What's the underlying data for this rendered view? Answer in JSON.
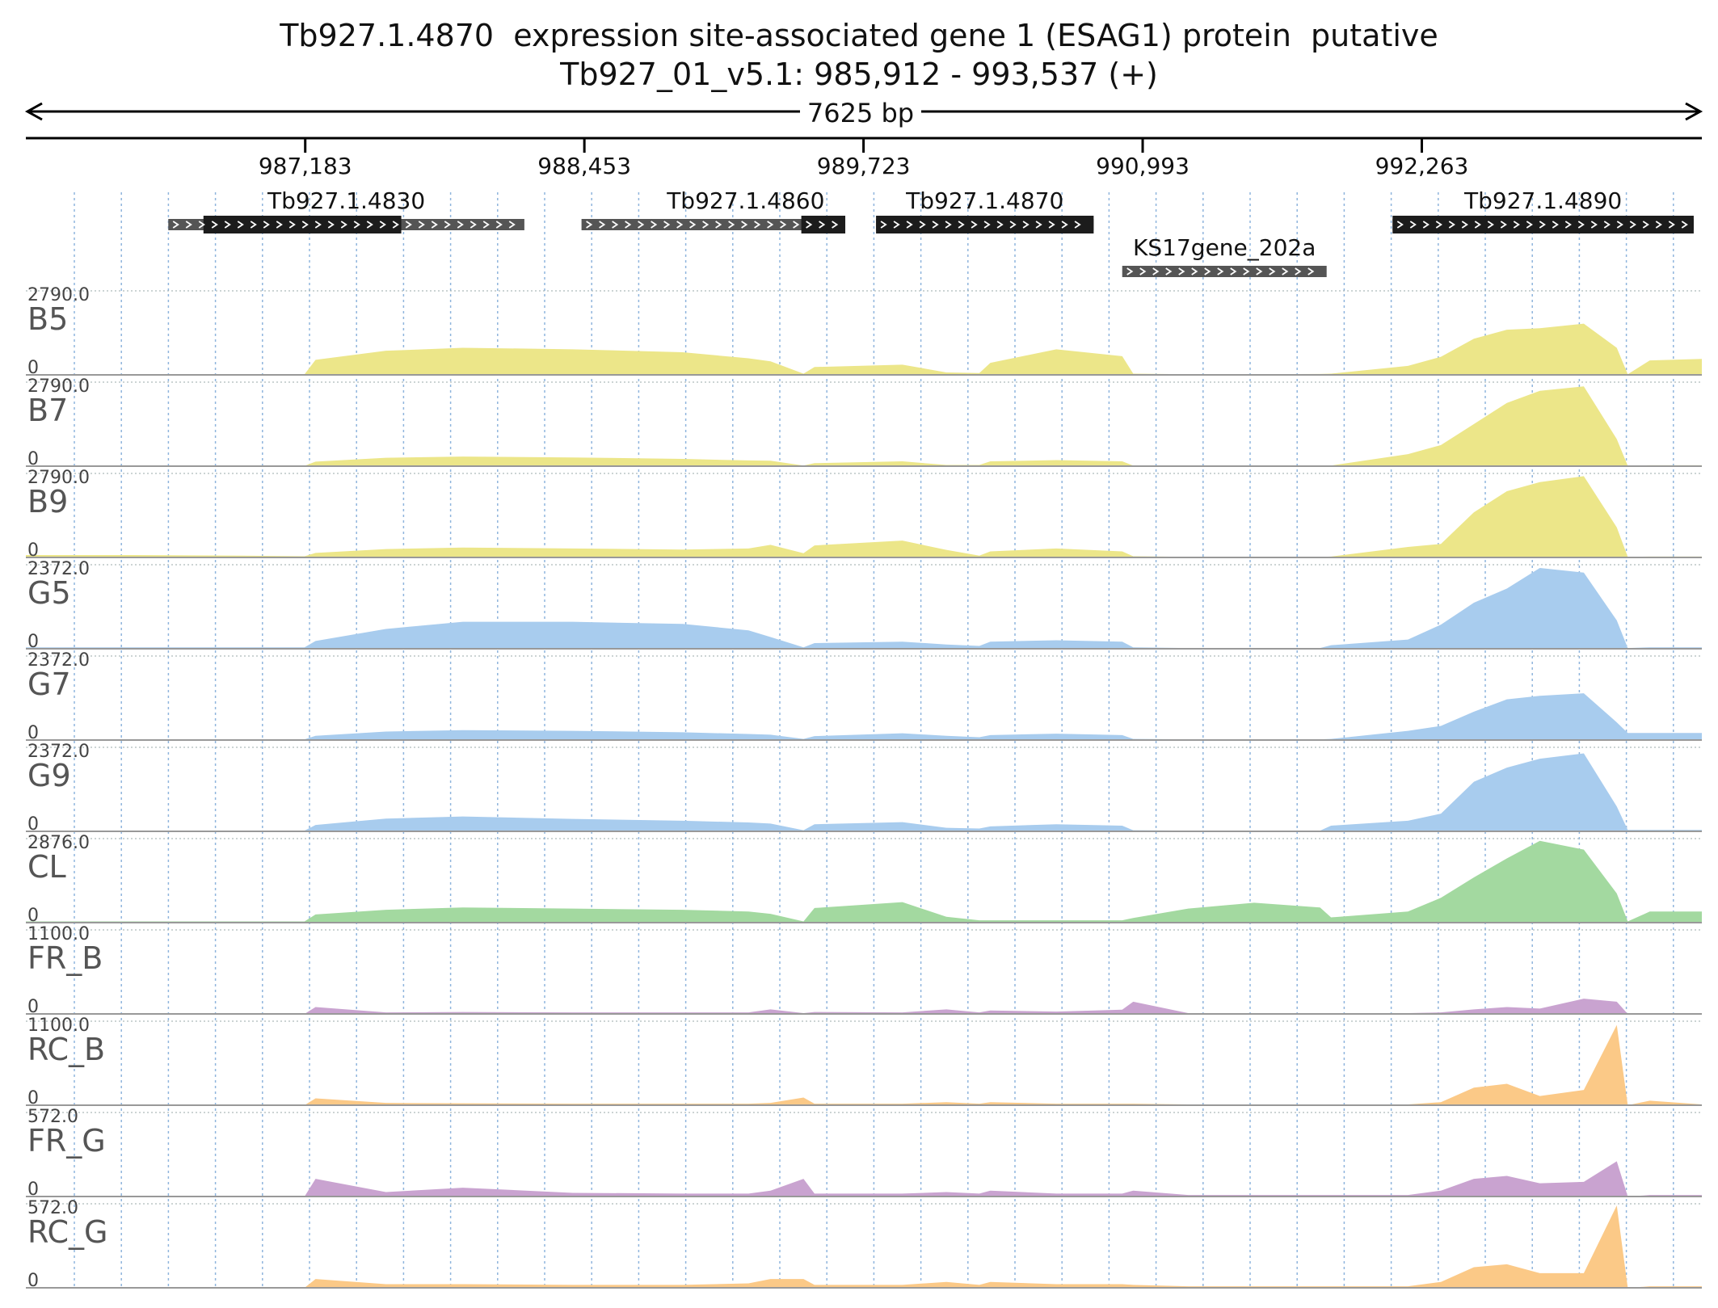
{
  "title": "Tb927.1.4870  expression site-associated gene 1 (ESAG1) protein  putative",
  "subtitle": "Tb927_01_v5.1: 985,912 - 993,537 (+)",
  "span_label": "7625 bp",
  "chart_data": {
    "type": "area",
    "region": {
      "chrom": "Tb927_01_v5.1",
      "start": 985912,
      "end": 993537,
      "strand": "+"
    },
    "ticks": [
      "987,183",
      "988,453",
      "989,723",
      "990,993",
      "992,263"
    ],
    "tick_positions": [
      987183,
      988453,
      989723,
      990993,
      992263
    ],
    "genes": [
      {
        "name": "Tb927.1.4830",
        "utr_start": 986560,
        "utr_end": 988180,
        "cds_start": 986720,
        "cds_end": 987620,
        "row": 0
      },
      {
        "name": "Tb927.1.4860",
        "utr_start": 988440,
        "utr_end": 989640,
        "cds_start": 989440,
        "cds_end": 989640,
        "row": 0
      },
      {
        "name": "Tb927.1.4870",
        "utr_start": 989780,
        "utr_end": 990770,
        "cds_start": 989780,
        "cds_end": 990770,
        "row": 0
      },
      {
        "name": "KS17gene_202a",
        "utr_start": 990900,
        "utr_end": 991830,
        "cds_start": 0,
        "cds_end": 0,
        "row": 1
      },
      {
        "name": "Tb927.1.4890",
        "utr_start": 992130,
        "utr_end": 993500,
        "cds_start": 992130,
        "cds_end": 993500,
        "row": 0
      }
    ],
    "x": [
      985912,
      986400,
      986900,
      987180,
      987230,
      987550,
      987900,
      988400,
      988900,
      989200,
      989300,
      989450,
      989500,
      989900,
      990100,
      990250,
      990300,
      990600,
      990900,
      990950,
      991200,
      991500,
      991800,
      991850,
      992200,
      992350,
      992500,
      992650,
      992800,
      993000,
      993150,
      993200,
      993300,
      993537
    ],
    "series": [
      {
        "name": "B5",
        "max": "2790.0",
        "color": "#ece689",
        "values": [
          20,
          20,
          20,
          20,
          500,
          800,
          900,
          850,
          750,
          550,
          450,
          40,
          260,
          340,
          80,
          60,
          400,
          850,
          620,
          40,
          20,
          20,
          30,
          40,
          300,
          600,
          1200,
          1500,
          1550,
          1700,
          900,
          20,
          480,
          530
        ]
      },
      {
        "name": "B7",
        "max": "2790.0",
        "color": "#ece689",
        "values": [
          10,
          10,
          10,
          10,
          150,
          280,
          320,
          290,
          240,
          190,
          180,
          20,
          100,
          160,
          40,
          40,
          160,
          200,
          160,
          20,
          10,
          10,
          10,
          20,
          400,
          700,
          1400,
          2100,
          2500,
          2650,
          900,
          10,
          30,
          30
        ]
      },
      {
        "name": "B9",
        "max": "2790.0",
        "color": "#ece689",
        "values": [
          80,
          80,
          60,
          40,
          150,
          280,
          330,
          300,
          260,
          300,
          420,
          140,
          400,
          560,
          250,
          60,
          200,
          300,
          200,
          40,
          20,
          20,
          20,
          30,
          350,
          450,
          1500,
          2200,
          2500,
          2700,
          1000,
          20,
          30,
          30
        ]
      },
      {
        "name": "G5",
        "max": "2372.0",
        "color": "#a8ccee",
        "values": [
          40,
          40,
          40,
          40,
          220,
          560,
          760,
          760,
          700,
          520,
          330,
          40,
          160,
          200,
          120,
          80,
          200,
          240,
          200,
          40,
          20,
          20,
          20,
          100,
          260,
          680,
          1300,
          1700,
          2280,
          2150,
          800,
          20,
          40,
          40
        ]
      },
      {
        "name": "G7",
        "max": "2372.0",
        "color": "#a8ccee",
        "values": [
          20,
          20,
          20,
          20,
          120,
          240,
          280,
          260,
          220,
          170,
          150,
          30,
          110,
          190,
          120,
          80,
          140,
          180,
          140,
          30,
          20,
          20,
          20,
          30,
          260,
          400,
          800,
          1150,
          1250,
          1320,
          500,
          200,
          200,
          200
        ]
      },
      {
        "name": "G9",
        "max": "2372.0",
        "color": "#a8ccee",
        "values": [
          20,
          20,
          20,
          20,
          180,
          360,
          420,
          350,
          300,
          250,
          220,
          30,
          200,
          260,
          100,
          80,
          140,
          200,
          160,
          30,
          20,
          20,
          20,
          160,
          300,
          500,
          1400,
          1800,
          2050,
          2200,
          700,
          40,
          40,
          40
        ]
      },
      {
        "name": "CL",
        "max": "2876.0",
        "color": "#a3d9a0",
        "values": [
          40,
          40,
          40,
          40,
          280,
          440,
          520,
          480,
          440,
          380,
          300,
          40,
          500,
          700,
          200,
          80,
          80,
          80,
          80,
          160,
          480,
          680,
          520,
          180,
          380,
          850,
          1550,
          2200,
          2800,
          2500,
          1000,
          40,
          380,
          380
        ]
      },
      {
        "name": "FR_B",
        "max": "1100.0",
        "color": "#c9a3d0",
        "values": [
          0,
          0,
          0,
          0,
          90,
          20,
          25,
          20,
          20,
          20,
          60,
          10,
          25,
          20,
          60,
          20,
          45,
          30,
          55,
          160,
          10,
          10,
          10,
          10,
          10,
          20,
          60,
          90,
          70,
          200,
          160,
          0,
          10,
          10
        ]
      },
      {
        "name": "RC_B",
        "max": "1100.0",
        "color": "#fbc987",
        "values": [
          0,
          0,
          0,
          0,
          90,
          30,
          25,
          20,
          20,
          20,
          30,
          100,
          20,
          20,
          40,
          20,
          40,
          20,
          20,
          20,
          10,
          10,
          10,
          10,
          10,
          40,
          230,
          280,
          120,
          200,
          1050,
          0,
          60,
          10
        ]
      },
      {
        "name": "FR_G",
        "max": "572.0",
        "color": "#c9a3d0",
        "values": [
          0,
          0,
          0,
          0,
          120,
          30,
          60,
          25,
          20,
          20,
          40,
          120,
          20,
          20,
          30,
          20,
          40,
          20,
          20,
          40,
          10,
          10,
          10,
          10,
          10,
          40,
          120,
          140,
          90,
          100,
          240,
          0,
          10,
          10
        ]
      },
      {
        "name": "RC_G",
        "max": "572.0",
        "color": "#fbc987",
        "values": [
          0,
          0,
          0,
          0,
          60,
          25,
          25,
          20,
          20,
          30,
          60,
          60,
          20,
          20,
          40,
          20,
          40,
          25,
          25,
          20,
          10,
          10,
          10,
          10,
          10,
          40,
          140,
          160,
          100,
          100,
          560,
          0,
          10,
          10
        ]
      }
    ]
  }
}
